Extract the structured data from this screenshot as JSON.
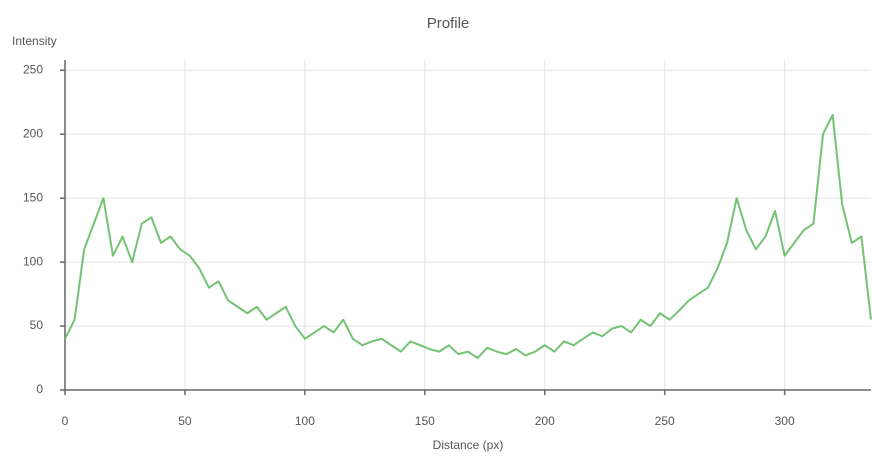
{
  "chart_data": {
    "type": "line",
    "title": "Profile",
    "y_label": "Intensity",
    "x_label": "Distance (px)",
    "x": [
      0,
      4,
      8,
      12,
      16,
      20,
      24,
      28,
      32,
      36,
      40,
      44,
      48,
      52,
      56,
      60,
      64,
      68,
      72,
      76,
      80,
      84,
      88,
      92,
      96,
      100,
      104,
      108,
      112,
      116,
      120,
      124,
      128,
      132,
      136,
      140,
      144,
      148,
      152,
      156,
      160,
      164,
      168,
      172,
      176,
      180,
      184,
      188,
      192,
      196,
      200,
      204,
      208,
      212,
      216,
      220,
      224,
      228,
      232,
      236,
      240,
      244,
      248,
      252,
      256,
      260,
      264,
      268,
      272,
      276,
      280,
      284,
      288,
      292,
      296,
      300,
      304,
      308,
      312,
      316,
      320,
      324,
      328,
      332,
      336
    ],
    "series": [
      {
        "name": "Intensity",
        "color": "#5cb85c",
        "values": [
          40,
          55,
          110,
          130,
          150,
          105,
          120,
          100,
          130,
          135,
          115,
          120,
          110,
          105,
          95,
          80,
          85,
          70,
          65,
          60,
          65,
          55,
          60,
          65,
          50,
          40,
          45,
          50,
          45,
          55,
          40,
          35,
          38,
          40,
          35,
          30,
          38,
          35,
          32,
          30,
          35,
          28,
          30,
          25,
          33,
          30,
          28,
          32,
          27,
          30,
          35,
          30,
          38,
          35,
          40,
          45,
          42,
          48,
          50,
          45,
          55,
          50,
          60,
          55,
          62,
          70,
          75,
          80,
          95,
          115,
          150,
          125,
          110,
          120,
          140,
          105,
          115,
          125,
          130,
          200,
          215,
          145,
          115,
          120,
          55
        ]
      }
    ],
    "xlim": [
      0,
      336
    ],
    "ylim": [
      0,
      258
    ],
    "xticks": [
      0,
      50,
      100,
      150,
      200,
      250,
      300
    ],
    "yticks": [
      0,
      50,
      100,
      150,
      200,
      250
    ],
    "grid": true
  }
}
